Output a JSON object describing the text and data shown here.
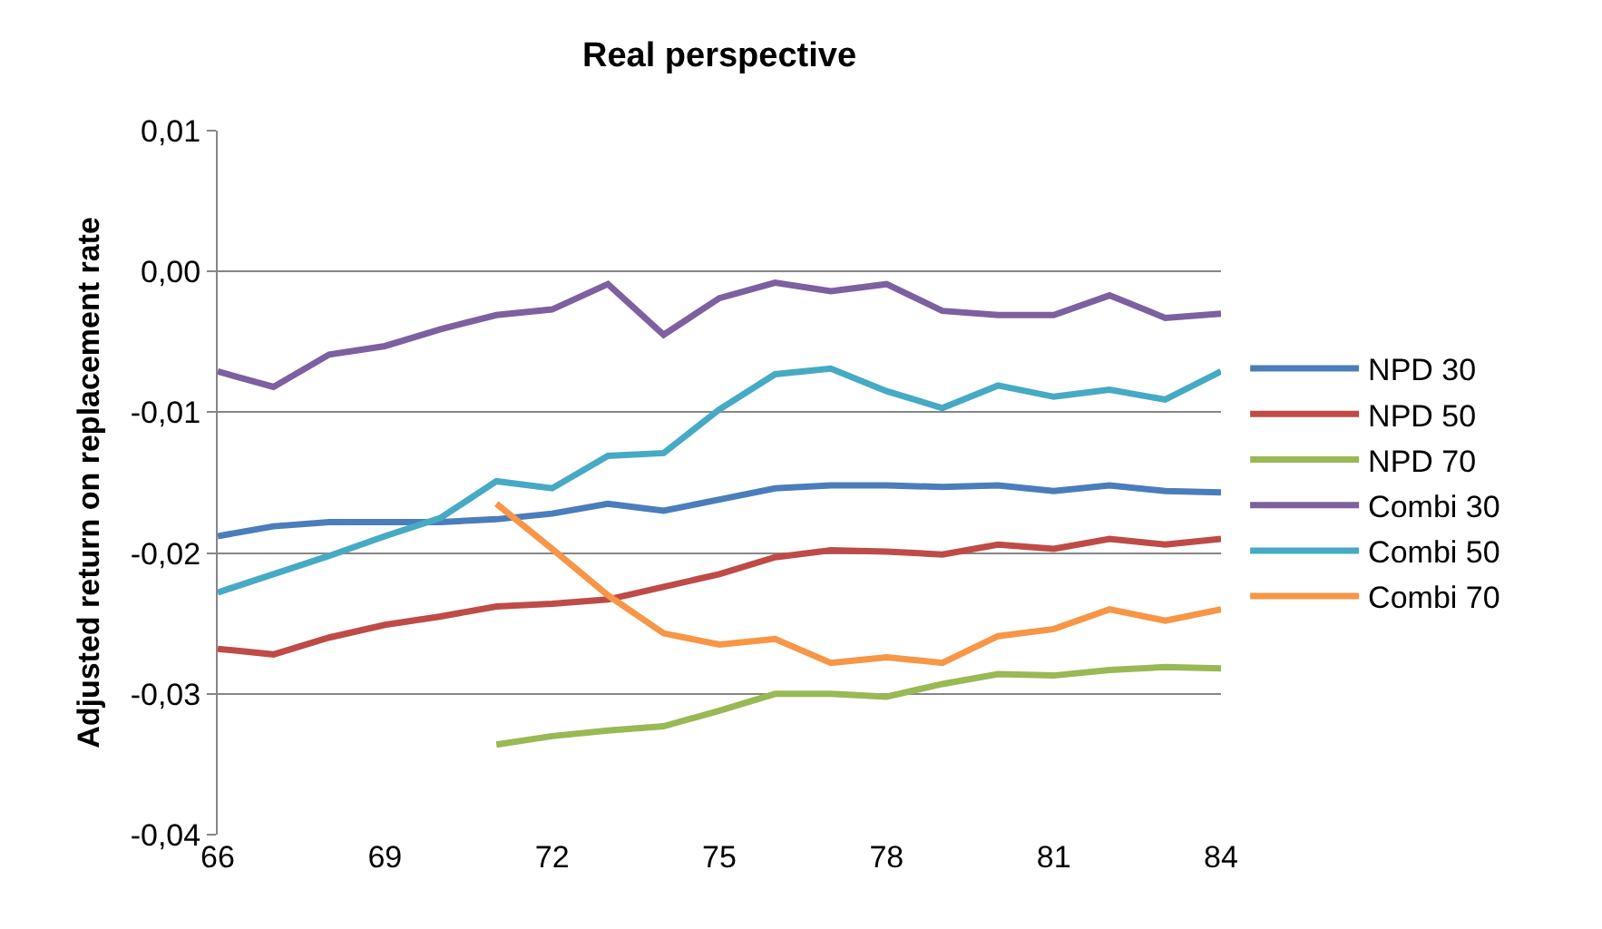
{
  "chart_data": {
    "type": "line",
    "title": "Real perspective",
    "ylabel": "Adjusted return on replacement rate",
    "x": [
      66,
      67,
      68,
      69,
      70,
      71,
      72,
      73,
      74,
      75,
      76,
      77,
      78,
      79,
      80,
      81,
      82,
      83,
      84
    ],
    "series": [
      {
        "name": "NPD 30",
        "color": "#4a7ebb",
        "values": [
          -0.0188,
          -0.0181,
          -0.0178,
          -0.0178,
          -0.0178,
          -0.0176,
          -0.0172,
          -0.0165,
          -0.017,
          -0.0162,
          -0.0154,
          -0.0152,
          -0.0152,
          -0.0153,
          -0.0152,
          -0.0156,
          -0.0152,
          -0.0156,
          -0.0157
        ]
      },
      {
        "name": "NPD 50",
        "color": "#be4b48",
        "values": [
          -0.0268,
          -0.0272,
          -0.026,
          -0.0251,
          -0.0245,
          -0.0238,
          -0.0236,
          -0.0233,
          -0.0224,
          -0.0215,
          -0.0203,
          -0.0198,
          -0.0199,
          -0.0201,
          -0.0194,
          -0.0197,
          -0.019,
          -0.0194,
          -0.019
        ]
      },
      {
        "name": "NPD 70",
        "color": "#98b954",
        "values": [
          null,
          null,
          null,
          null,
          null,
          -0.0336,
          -0.033,
          -0.0326,
          -0.0323,
          -0.0312,
          -0.03,
          -0.03,
          -0.0302,
          -0.0293,
          -0.0286,
          -0.0287,
          -0.0283,
          -0.0281,
          -0.0282
        ]
      },
      {
        "name": "Combi 30",
        "color": "#7d60a0",
        "values": [
          -0.0071,
          -0.0082,
          -0.0059,
          -0.0053,
          -0.0041,
          -0.0031,
          -0.0027,
          -0.0009,
          -0.0045,
          -0.0019,
          -0.0008,
          -0.0014,
          -0.0009,
          -0.0028,
          -0.0031,
          -0.0031,
          -0.0017,
          -0.0033,
          -0.003
        ]
      },
      {
        "name": "Combi 50",
        "color": "#46aac5",
        "values": [
          -0.0228,
          -0.0215,
          -0.0202,
          -0.0188,
          -0.0175,
          -0.0149,
          -0.0154,
          -0.0131,
          -0.0129,
          -0.0098,
          -0.0073,
          -0.0069,
          -0.0085,
          -0.0097,
          -0.0081,
          -0.0089,
          -0.0084,
          -0.0091,
          -0.0071
        ]
      },
      {
        "name": "Combi 70",
        "color": "#f79646",
        "values": [
          null,
          null,
          null,
          null,
          null,
          -0.0165,
          -0.0197,
          -0.023,
          -0.0257,
          -0.0265,
          -0.0261,
          -0.0278,
          -0.0274,
          -0.0278,
          -0.0259,
          -0.0254,
          -0.024,
          -0.0248,
          -0.024
        ]
      }
    ],
    "xlim": [
      66,
      84
    ],
    "xticks": [
      66,
      69,
      72,
      75,
      78,
      81,
      84
    ],
    "ylim": [
      -0.04,
      0.01
    ],
    "yticks": [
      {
        "value": 0.01,
        "label": "0,01"
      },
      {
        "value": 0,
        "label": "0,00"
      },
      {
        "value": -0.01,
        "label": "-0,01"
      },
      {
        "value": -0.02,
        "label": "-0,02"
      },
      {
        "value": -0.03,
        "label": "-0,03"
      },
      {
        "value": -0.04,
        "label": "-0,04"
      }
    ],
    "grid": "y",
    "legend": "right",
    "marker": "none",
    "line_style": "solid"
  }
}
